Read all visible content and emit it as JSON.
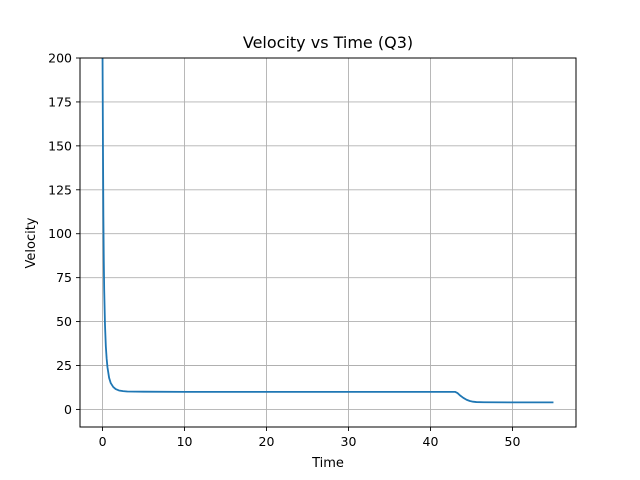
{
  "chart_data": {
    "type": "line",
    "title": "Velocity vs Time (Q3)",
    "xlabel": "Time",
    "ylabel": "Velocity",
    "xlim": [
      -2.75,
      57.75
    ],
    "ylim": [
      -10,
      200
    ],
    "xticks": [
      0,
      10,
      20,
      30,
      40,
      50
    ],
    "yticks": [
      0,
      25,
      50,
      75,
      100,
      125,
      150,
      175,
      200
    ],
    "grid": true,
    "legend": "none",
    "line_color": "#1f77b4",
    "series": [
      {
        "x": [
          0,
          0.02,
          0.05,
          0.1,
          0.15,
          0.2,
          0.3,
          0.4,
          0.5,
          0.6,
          0.8,
          1.0,
          1.3,
          1.6,
          2.0,
          2.5,
          3.0,
          5,
          10,
          20,
          30,
          40,
          43.0,
          43.3,
          43.6,
          44.0,
          44.4,
          44.8,
          45.2,
          45.6,
          46.5,
          50,
          55
        ],
        "y": [
          200,
          180,
          150,
          110,
          85,
          68,
          48,
          36,
          29,
          24,
          18,
          15,
          12.8,
          11.6,
          10.8,
          10.4,
          10.2,
          10.1,
          10,
          10,
          10,
          10,
          10,
          9.3,
          8.0,
          6.6,
          5.5,
          4.8,
          4.4,
          4.2,
          4.1,
          4.0,
          4.0
        ]
      }
    ]
  }
}
